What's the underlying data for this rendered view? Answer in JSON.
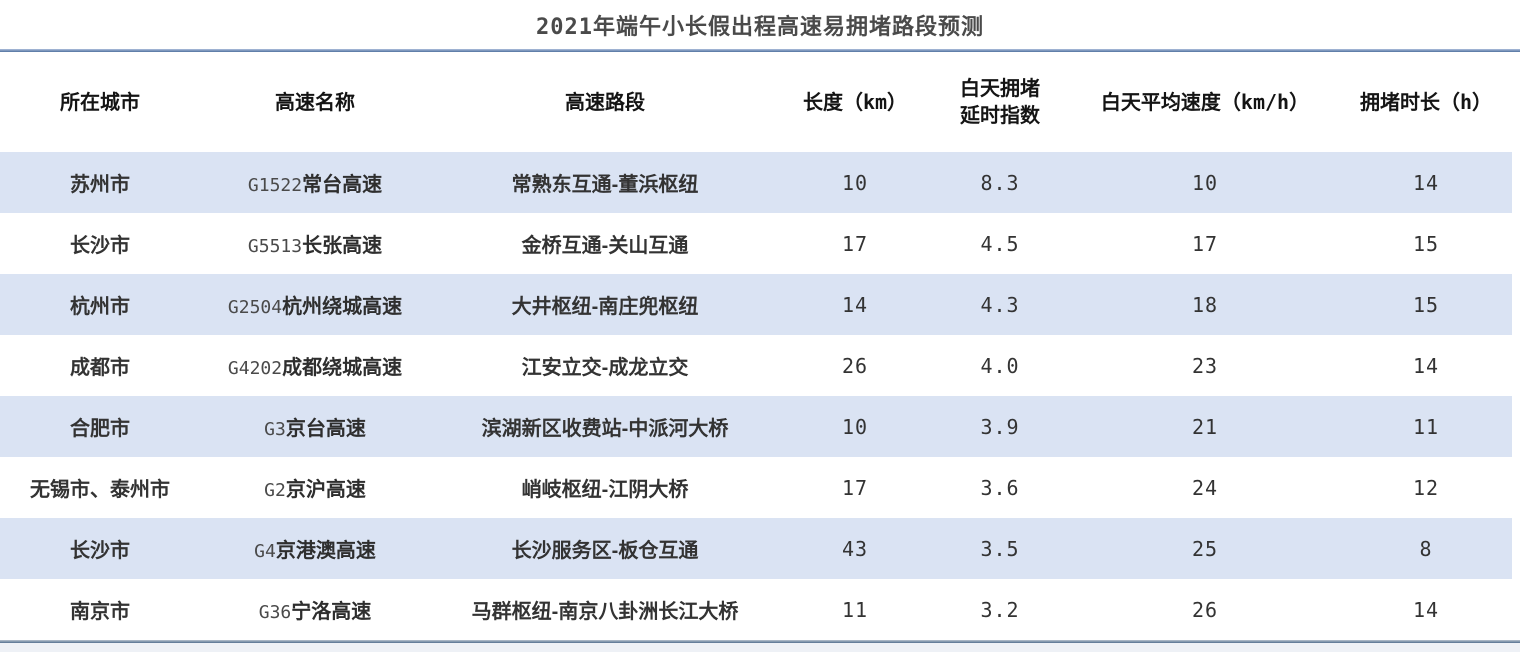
{
  "title": "2021年端午小长假出程高速易拥堵路段预测",
  "columns": [
    {
      "key": "city",
      "label": "所在城市",
      "kind": "cn"
    },
    {
      "key": "highway",
      "label": "高速名称",
      "kind": "hw"
    },
    {
      "key": "section",
      "label": "高速路段",
      "kind": "cn"
    },
    {
      "key": "length",
      "label": "长度（km）",
      "kind": "num"
    },
    {
      "key": "delay_index",
      "label": "白天拥堵\n延时指数",
      "kind": "num"
    },
    {
      "key": "avg_speed",
      "label": "白天平均速度（km/h）",
      "kind": "num"
    },
    {
      "key": "duration",
      "label": "拥堵时长（h）",
      "kind": "num"
    }
  ],
  "rows": [
    {
      "city": "苏州市",
      "highway_code": "G1522",
      "highway_name": "常台高速",
      "section": "常熟东互通-董浜枢纽",
      "length": "10",
      "delay_index": "8.3",
      "avg_speed": "10",
      "duration": "14"
    },
    {
      "city": "长沙市",
      "highway_code": "G5513",
      "highway_name": "长张高速",
      "section": "金桥互通-关山互通",
      "length": "17",
      "delay_index": "4.5",
      "avg_speed": "17",
      "duration": "15"
    },
    {
      "city": "杭州市",
      "highway_code": "G2504",
      "highway_name": "杭州绕城高速",
      "section": "大井枢纽-南庄兜枢纽",
      "length": "14",
      "delay_index": "4.3",
      "avg_speed": "18",
      "duration": "15"
    },
    {
      "city": "成都市",
      "highway_code": "G4202",
      "highway_name": "成都绕城高速",
      "section": "江安立交-成龙立交",
      "length": "26",
      "delay_index": "4.0",
      "avg_speed": "23",
      "duration": "14"
    },
    {
      "city": "合肥市",
      "highway_code": "G3",
      "highway_name": "京台高速",
      "section": "滨湖新区收费站-中派河大桥",
      "length": "10",
      "delay_index": "3.9",
      "avg_speed": "21",
      "duration": "11"
    },
    {
      "city": "无锡市、泰州市",
      "highway_code": "G2",
      "highway_name": "京沪高速",
      "section": "峭岐枢纽-江阴大桥",
      "length": "17",
      "delay_index": "3.6",
      "avg_speed": "24",
      "duration": "12"
    },
    {
      "city": "长沙市",
      "highway_code": "G4",
      "highway_name": "京港澳高速",
      "section": "长沙服务区-板仓互通",
      "length": "43",
      "delay_index": "3.5",
      "avg_speed": "25",
      "duration": "8"
    },
    {
      "city": "南京市",
      "highway_code": "G36",
      "highway_name": "宁洛高速",
      "section": "马群枢纽-南京八卦洲长江大桥",
      "length": "11",
      "delay_index": "3.2",
      "avg_speed": "26",
      "duration": "14"
    }
  ],
  "colors": {
    "stripe_row": "#dae3f3",
    "rule_blue": "#50729f",
    "rule_bottom": "#54708f",
    "title_text": "#4a4a4a"
  },
  "chart_data": {
    "type": "table",
    "title": "2021年端午小长假出程高速易拥堵路段预测",
    "columns": [
      "所在城市",
      "高速名称",
      "高速路段",
      "长度（km）",
      "白天拥堵延时指数",
      "白天平均速度（km/h）",
      "拥堵时长（h）"
    ],
    "rows": [
      [
        "苏州市",
        "G1522常台高速",
        "常熟东互通-董浜枢纽",
        10,
        8.3,
        10,
        14
      ],
      [
        "长沙市",
        "G5513长张高速",
        "金桥互通-关山互通",
        17,
        4.5,
        17,
        15
      ],
      [
        "杭州市",
        "G2504杭州绕城高速",
        "大井枢纽-南庄兜枢纽",
        14,
        4.3,
        18,
        15
      ],
      [
        "成都市",
        "G4202成都绕城高速",
        "江安立交-成龙立交",
        26,
        4.0,
        23,
        14
      ],
      [
        "合肥市",
        "G3京台高速",
        "滨湖新区收费站-中派河大桥",
        10,
        3.9,
        21,
        11
      ],
      [
        "无锡市、泰州市",
        "G2京沪高速",
        "峭岐枢纽-江阴大桥",
        17,
        3.6,
        24,
        12
      ],
      [
        "长沙市",
        "G4京港澳高速",
        "长沙服务区-板仓互通",
        43,
        3.5,
        25,
        8
      ],
      [
        "南京市",
        "G36宁洛高速",
        "马群枢纽-南京八卦洲长江大桥",
        11,
        3.2,
        26,
        14
      ]
    ]
  }
}
